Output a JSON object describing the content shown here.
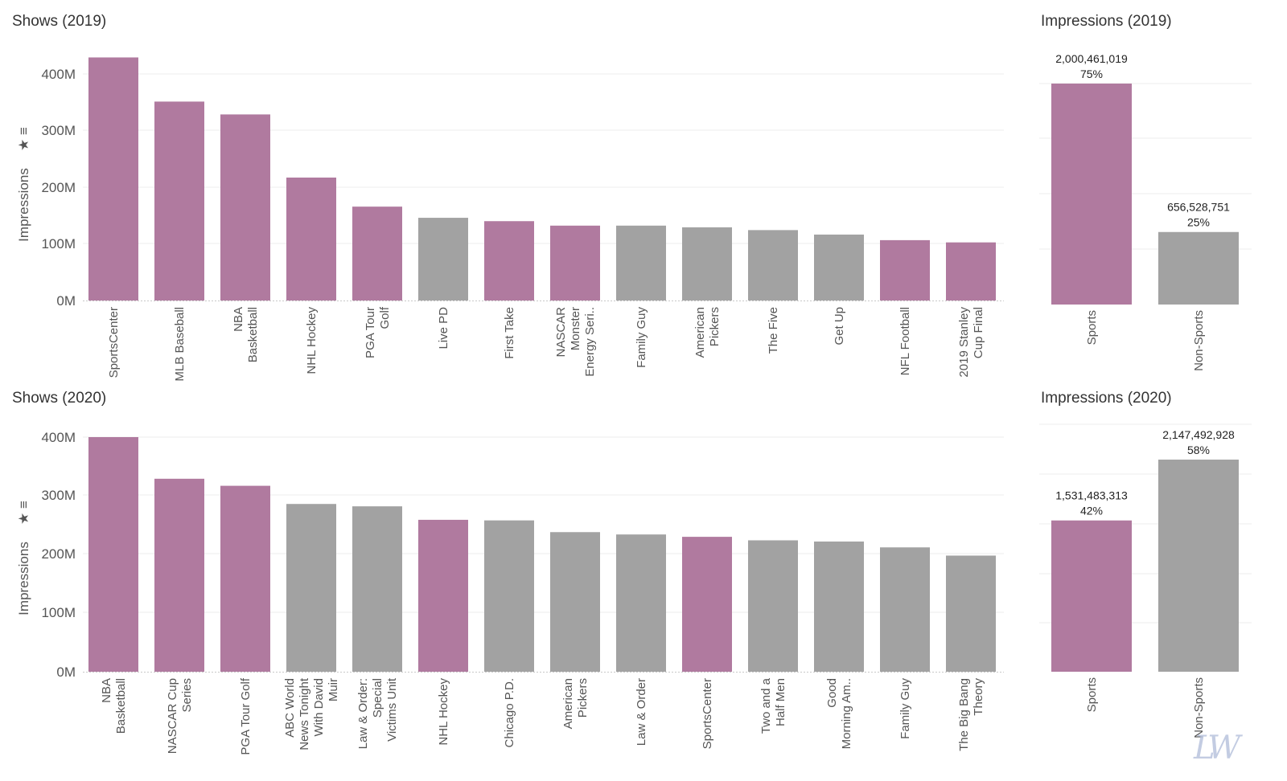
{
  "colors": {
    "sports": "#b07a9f",
    "nonsports": "#a2a2a2"
  },
  "chart_data": [
    {
      "id": "shows2019",
      "type": "bar",
      "title": "Shows (2019)",
      "ylabel": "Impressions",
      "ylim": [
        0,
        440000000
      ],
      "yticks": [
        "0M",
        "100M",
        "200M",
        "300M",
        "400M"
      ],
      "categories": [
        [
          "SportsCenter"
        ],
        [
          "MLB Baseball"
        ],
        [
          "NBA",
          "Basketball"
        ],
        [
          "NHL Hockey"
        ],
        [
          "PGA Tour",
          "Golf"
        ],
        [
          "Live PD"
        ],
        [
          "First Take"
        ],
        [
          "NASCAR",
          "Monster",
          "Energy Seri.."
        ],
        [
          "Family Guy"
        ],
        [
          "American",
          "Pickers"
        ],
        [
          "The Five"
        ],
        [
          "Get Up"
        ],
        [
          "NFL Football"
        ],
        [
          "2019 Stanley",
          "Cup Final"
        ]
      ],
      "values": [
        435000000,
        356000000,
        333000000,
        220000000,
        168000000,
        148000000,
        142000000,
        134000000,
        134000000,
        131000000,
        126000000,
        118000000,
        108000000,
        104000000
      ],
      "sports": [
        true,
        true,
        true,
        true,
        true,
        false,
        true,
        true,
        false,
        false,
        false,
        false,
        true,
        true
      ]
    },
    {
      "id": "impressions2019",
      "type": "bar",
      "title": "Impressions (2019)",
      "ylim": [
        0,
        2000461019
      ],
      "categories": [
        [
          "Sports"
        ],
        [
          "Non-Sports"
        ]
      ],
      "values": [
        2000461019,
        656528751
      ],
      "value_labels": [
        "2,000,461,019",
        "656,528,751"
      ],
      "percent_labels": [
        "75%",
        "25%"
      ],
      "sports": [
        true,
        false
      ]
    },
    {
      "id": "shows2020",
      "type": "bar",
      "title": "Shows (2020)",
      "ylabel": "Impressions",
      "ylim": [
        0,
        400000000
      ],
      "yticks": [
        "0M",
        "100M",
        "200M",
        "300M",
        "400M"
      ],
      "categories": [
        [
          "NBA",
          "Basketball"
        ],
        [
          "NASCAR Cup",
          "Series"
        ],
        [
          "PGA Tour Golf"
        ],
        [
          "ABC World",
          "News Tonight",
          "With David",
          "Muir"
        ],
        [
          "Law & Order:",
          "Special",
          "Victims Unit"
        ],
        [
          "NHL Hockey"
        ],
        [
          "Chicago P.D."
        ],
        [
          "American",
          "Pickers"
        ],
        [
          "Law & Order"
        ],
        [
          "SportsCenter"
        ],
        [
          "Two and a",
          "Half Men"
        ],
        [
          "Good",
          "Morning Am.."
        ],
        [
          "Family Guy"
        ],
        [
          "The Big Bang",
          "Theory"
        ]
      ],
      "values": [
        400000000,
        329000000,
        317000000,
        286000000,
        282000000,
        259000000,
        258000000,
        238000000,
        234000000,
        230000000,
        224000000,
        222000000,
        212000000,
        198000000
      ],
      "sports": [
        true,
        true,
        true,
        false,
        false,
        true,
        false,
        false,
        false,
        true,
        false,
        false,
        false,
        false
      ]
    },
    {
      "id": "impressions2020",
      "type": "bar",
      "title": "Impressions (2020)",
      "ylim": [
        0,
        2147492928
      ],
      "categories": [
        [
          "Sports"
        ],
        [
          "Non-Sports"
        ]
      ],
      "values": [
        1531483313,
        2147492928
      ],
      "value_labels": [
        "1,531,483,313",
        "2,147,492,928"
      ],
      "percent_labels": [
        "42%",
        "58%"
      ],
      "sports": [
        true,
        false
      ]
    }
  ]
}
